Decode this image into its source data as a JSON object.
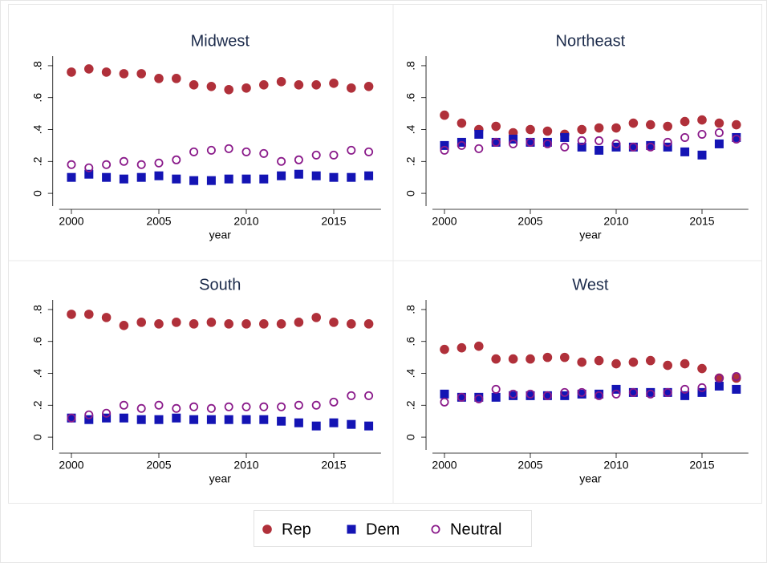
{
  "chart_data": {
    "type": "scatter",
    "x": [
      2000,
      2001,
      2002,
      2003,
      2004,
      2005,
      2006,
      2007,
      2008,
      2009,
      2010,
      2011,
      2012,
      2013,
      2014,
      2015,
      2016,
      2017
    ],
    "xlim": [
      1999.3,
      2017.7
    ],
    "xticks": [
      2000,
      2005,
      2010,
      2015
    ],
    "xlabel": "year",
    "ylim": [
      -0.08,
      0.86
    ],
    "yticks": [
      0,
      {
        "value": 0.2,
        "label": ".2"
      },
      {
        "value": 0.4,
        "label": ".4"
      },
      {
        "value": 0.6,
        "label": ".6"
      },
      {
        "value": 0.8,
        "label": ".8"
      }
    ],
    "series": [
      {
        "name": "Rep",
        "color": "#b0303a",
        "marker": "circle"
      },
      {
        "name": "Dem",
        "color": "#1414b4",
        "marker": "square"
      },
      {
        "name": "Neutral",
        "color": "#8a1a8a",
        "marker": "hollow-circle"
      }
    ],
    "panels": [
      {
        "title": "Midwest",
        "series": [
          {
            "values": [
              0.76,
              0.78,
              0.76,
              0.75,
              0.75,
              0.72,
              0.72,
              0.68,
              0.67,
              0.65,
              0.66,
              0.68,
              0.7,
              0.68,
              0.68,
              0.69,
              0.66,
              0.67
            ]
          },
          {
            "values": [
              0.1,
              0.12,
              0.1,
              0.09,
              0.1,
              0.11,
              0.09,
              0.08,
              0.08,
              0.09,
              0.09,
              0.09,
              0.11,
              0.12,
              0.11,
              0.1,
              0.1,
              0.11
            ]
          },
          {
            "values": [
              0.18,
              0.16,
              0.18,
              0.2,
              0.18,
              0.19,
              0.21,
              0.26,
              0.27,
              0.28,
              0.26,
              0.25,
              0.2,
              0.21,
              0.24,
              0.24,
              0.27,
              0.26
            ]
          }
        ]
      },
      {
        "title": "Northeast",
        "series": [
          {
            "values": [
              0.49,
              0.44,
              0.4,
              0.42,
              0.38,
              0.4,
              0.39,
              0.37,
              0.4,
              0.41,
              0.41,
              0.44,
              0.43,
              0.42,
              0.45,
              0.46,
              0.44,
              0.43
            ]
          },
          {
            "values": [
              0.3,
              0.32,
              0.37,
              0.32,
              0.34,
              0.32,
              0.32,
              0.35,
              0.29,
              0.27,
              0.29,
              0.29,
              0.3,
              0.29,
              0.26,
              0.24,
              0.31,
              0.35
            ]
          },
          {
            "values": [
              0.27,
              0.3,
              0.28,
              0.32,
              0.31,
              0.32,
              0.31,
              0.29,
              0.33,
              0.33,
              0.31,
              0.29,
              0.29,
              0.32,
              0.35,
              0.37,
              0.38,
              0.34
            ]
          }
        ]
      },
      {
        "title": "South",
        "series": [
          {
            "values": [
              0.77,
              0.77,
              0.75,
              0.7,
              0.72,
              0.71,
              0.72,
              0.71,
              0.72,
              0.71,
              0.71,
              0.71,
              0.71,
              0.72,
              0.75,
              0.72,
              0.71,
              0.71
            ]
          },
          {
            "values": [
              0.12,
              0.11,
              0.12,
              0.12,
              0.11,
              0.11,
              0.12,
              0.11,
              0.11,
              0.11,
              0.11,
              0.11,
              0.1,
              0.09,
              0.07,
              0.09,
              0.08,
              0.07
            ]
          },
          {
            "values": [
              0.12,
              0.14,
              0.15,
              0.2,
              0.18,
              0.2,
              0.18,
              0.19,
              0.18,
              0.19,
              0.19,
              0.19,
              0.19,
              0.2,
              0.2,
              0.22,
              0.26,
              0.26
            ]
          }
        ]
      },
      {
        "title": "West",
        "series": [
          {
            "values": [
              0.55,
              0.56,
              0.57,
              0.49,
              0.49,
              0.49,
              0.5,
              0.5,
              0.47,
              0.48,
              0.46,
              0.47,
              0.48,
              0.45,
              0.46,
              0.43,
              0.37,
              0.37
            ]
          },
          {
            "values": [
              0.27,
              0.25,
              0.25,
              0.25,
              0.26,
              0.26,
              0.26,
              0.26,
              0.27,
              0.27,
              0.3,
              0.28,
              0.28,
              0.28,
              0.26,
              0.28,
              0.32,
              0.3
            ]
          },
          {
            "values": [
              0.22,
              0.25,
              0.24,
              0.3,
              0.27,
              0.27,
              0.26,
              0.28,
              0.28,
              0.26,
              0.27,
              0.28,
              0.27,
              0.28,
              0.3,
              0.31,
              0.37,
              0.38
            ]
          }
        ]
      }
    ]
  }
}
